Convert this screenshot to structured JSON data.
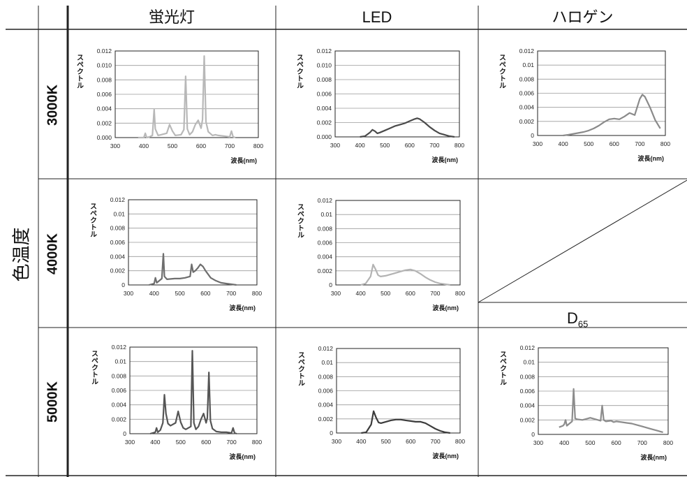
{
  "table": {
    "columns": [
      "蛍光灯",
      "LED",
      "ハロゲン"
    ],
    "rows": [
      "3000K",
      "4000K",
      "5000K"
    ],
    "row_group_label": "色温度",
    "d65_label": {
      "main": "D",
      "sub": "65"
    }
  },
  "chart_data": [
    {
      "id": "fl-3000",
      "type": "line",
      "light": "蛍光灯",
      "cct": "3000K",
      "xlabel": "波長(nm)",
      "ylabel": "スペクトル",
      "xlim": [
        300,
        800
      ],
      "ylim": [
        0,
        0.012
      ],
      "xticks": [
        "300",
        "400",
        "500",
        "600",
        "700",
        "800"
      ],
      "yticks": [
        "0.000",
        "0.002",
        "0.004",
        "0.006",
        "0.008",
        "0.010",
        "0.012"
      ],
      "color": "#b8b8b8",
      "series": [
        {
          "x": [
            380,
            400,
            405,
            410,
            420,
            430,
            436,
            440,
            450,
            460,
            480,
            490,
            500,
            510,
            530,
            540,
            546,
            552,
            560,
            570,
            580,
            590,
            600,
            605,
            611,
            617,
            625,
            640,
            650,
            660,
            680,
            700,
            706,
            712,
            720
          ],
          "y": [
            0,
            0,
            0.0006,
            0,
            0.0001,
            0.0003,
            0.0039,
            0.0012,
            0.0003,
            0.0004,
            0.0006,
            0.0018,
            0.0009,
            0.0003,
            0.0004,
            0.0011,
            0.0085,
            0.0012,
            0.0004,
            0.0008,
            0.0018,
            0.0024,
            0.0013,
            0.0025,
            0.0113,
            0.0022,
            0.0008,
            0.0003,
            0.0004,
            0.0003,
            0.0002,
            0.0001,
            0.0009,
            0.0001,
            0
          ]
        }
      ]
    },
    {
      "id": "led-3000",
      "type": "line",
      "light": "LED",
      "cct": "3000K",
      "xlabel": "波長(nm)",
      "ylabel": "スペクトル",
      "xlim": [
        300,
        800
      ],
      "ylim": [
        0,
        0.012
      ],
      "xticks": [
        "300",
        "400",
        "500",
        "600",
        "700",
        "800"
      ],
      "yticks": [
        "0.000",
        "0.002",
        "0.004",
        "0.006",
        "0.008",
        "0.010",
        "0.012"
      ],
      "color": "#4a4a4a",
      "series": [
        {
          "x": [
            400,
            420,
            440,
            450,
            460,
            470,
            480,
            500,
            520,
            540,
            560,
            580,
            600,
            620,
            630,
            640,
            660,
            680,
            700,
            720,
            740,
            760,
            780
          ],
          "y": [
            0,
            0.0001,
            0.0006,
            0.001,
            0.0008,
            0.0005,
            0.0006,
            0.0009,
            0.0012,
            0.0015,
            0.0017,
            0.0019,
            0.0022,
            0.0025,
            0.0026,
            0.0025,
            0.002,
            0.0014,
            0.0009,
            0.0005,
            0.0003,
            0.0001,
            0
          ]
        }
      ]
    },
    {
      "id": "hal-3000",
      "type": "line",
      "light": "ハロゲン",
      "cct": "3000K",
      "xlabel": "波長(nm)",
      "ylabel": "スペクトル",
      "xlim": [
        300,
        800
      ],
      "ylim": [
        0,
        0.012
      ],
      "xticks": [
        "300",
        "400",
        "500",
        "600",
        "700",
        "800"
      ],
      "yticks": [
        "0",
        "0.002",
        "0.004",
        "0.006",
        "0.008",
        "0.01",
        "0.012"
      ],
      "color": "#8a8a8a",
      "series": [
        {
          "x": [
            400,
            420,
            450,
            480,
            500,
            520,
            540,
            560,
            580,
            600,
            620,
            640,
            660,
            680,
            700,
            710,
            720,
            740,
            760,
            780
          ],
          "y": [
            0,
            0.0001,
            0.0003,
            0.0005,
            0.0007,
            0.001,
            0.0014,
            0.0019,
            0.0023,
            0.0024,
            0.0023,
            0.0027,
            0.0032,
            0.0029,
            0.0052,
            0.0058,
            0.0055,
            0.004,
            0.0022,
            0.001
          ]
        }
      ]
    },
    {
      "id": "fl-4000",
      "type": "line",
      "light": "蛍光灯",
      "cct": "4000K",
      "xlabel": "波長(nm)",
      "ylabel": "スペクトル",
      "xlim": [
        300,
        800
      ],
      "ylim": [
        0,
        0.012
      ],
      "xticks": [
        "300",
        "400",
        "500",
        "600",
        "700",
        "800"
      ],
      "yticks": [
        "0",
        "0.002",
        "0.004",
        "0.006",
        "0.008",
        "0.01",
        "0.012"
      ],
      "color": "#6e6e6e",
      "series": [
        {
          "x": [
            380,
            400,
            405,
            410,
            420,
            430,
            436,
            440,
            450,
            480,
            500,
            520,
            540,
            546,
            552,
            560,
            570,
            580,
            590,
            600,
            620,
            640,
            660,
            680,
            700,
            720
          ],
          "y": [
            0,
            0.0002,
            0.001,
            0.0003,
            0.0006,
            0.0009,
            0.0044,
            0.0012,
            0.0008,
            0.0009,
            0.0009,
            0.001,
            0.0012,
            0.0029,
            0.0018,
            0.002,
            0.0024,
            0.0029,
            0.0026,
            0.002,
            0.001,
            0.0006,
            0.0003,
            0.0002,
            0.0001,
            0
          ]
        }
      ]
    },
    {
      "id": "led-4000",
      "type": "line",
      "light": "LED",
      "cct": "4000K",
      "xlabel": "波長(nm)",
      "ylabel": "スペクトル",
      "xlim": [
        300,
        800
      ],
      "ylim": [
        0,
        0.012
      ],
      "xticks": [
        "300",
        "400",
        "500",
        "600",
        "700",
        "800"
      ],
      "yticks": [
        "0",
        "0.002",
        "0.004",
        "0.006",
        "0.008",
        "0.01",
        "0.012"
      ],
      "color": "#b3b3b3",
      "series": [
        {
          "x": [
            400,
            420,
            440,
            450,
            460,
            470,
            480,
            500,
            520,
            540,
            560,
            580,
            600,
            620,
            640,
            660,
            680,
            700,
            720,
            740,
            760
          ],
          "y": [
            0,
            0.0002,
            0.0012,
            0.0029,
            0.0022,
            0.0014,
            0.0012,
            0.0013,
            0.0015,
            0.0017,
            0.0019,
            0.0021,
            0.0022,
            0.002,
            0.0016,
            0.0011,
            0.0007,
            0.0004,
            0.0002,
            0.0001,
            0
          ]
        }
      ]
    },
    {
      "id": "fl-5000",
      "type": "line",
      "light": "蛍光灯",
      "cct": "5000K",
      "xlabel": "波長(nm)",
      "ylabel": "スペクトル",
      "xlim": [
        300,
        800
      ],
      "ylim": [
        0,
        0.012
      ],
      "xticks": [
        "300",
        "400",
        "500",
        "600",
        "700",
        "800"
      ],
      "yticks": [
        "0",
        "0.002",
        "0.004",
        "0.006",
        "0.008",
        "0.01",
        "0.012"
      ],
      "color": "#555555",
      "series": [
        {
          "x": [
            380,
            400,
            405,
            410,
            420,
            430,
            436,
            442,
            450,
            460,
            480,
            490,
            500,
            510,
            520,
            540,
            546,
            552,
            560,
            570,
            580,
            590,
            600,
            605,
            611,
            617,
            625,
            640,
            660,
            680,
            700,
            706,
            712,
            720
          ],
          "y": [
            0,
            0.0002,
            0.0008,
            0.0002,
            0.0005,
            0.0015,
            0.0054,
            0.0028,
            0.0014,
            0.0011,
            0.0015,
            0.0031,
            0.0016,
            0.0008,
            0.0006,
            0.001,
            0.0115,
            0.0015,
            0.0006,
            0.001,
            0.002,
            0.0028,
            0.0015,
            0.0022,
            0.0085,
            0.0018,
            0.0007,
            0.0003,
            0.0002,
            0.0002,
            0.0001,
            0.0008,
            0.0001,
            0
          ]
        }
      ]
    },
    {
      "id": "led-5000",
      "type": "line",
      "light": "LED",
      "cct": "5000K",
      "xlabel": "波長(nm)",
      "ylabel": "スペクトル",
      "xlim": [
        300,
        800
      ],
      "ylim": [
        0,
        0.012
      ],
      "xticks": [
        "300",
        "400",
        "500",
        "600",
        "700",
        "800"
      ],
      "yticks": [
        "0",
        "0.002",
        "0.004",
        "0.006",
        "0.008",
        "0.01",
        "0.012"
      ],
      "color": "#3c3c3c",
      "series": [
        {
          "x": [
            400,
            420,
            440,
            450,
            460,
            470,
            480,
            500,
            520,
            540,
            560,
            580,
            600,
            620,
            640,
            660,
            680,
            700,
            720,
            740,
            760
          ],
          "y": [
            0,
            0.0001,
            0.0012,
            0.0031,
            0.0022,
            0.0015,
            0.0014,
            0.0016,
            0.0018,
            0.0019,
            0.0019,
            0.0018,
            0.0017,
            0.0016,
            0.0016,
            0.0014,
            0.001,
            0.0006,
            0.0003,
            0.0001,
            0
          ]
        }
      ]
    },
    {
      "id": "d65",
      "type": "line",
      "light": "D65",
      "cct": "",
      "xlabel": "波長(nm)",
      "ylabel": "スペクトル",
      "xlim": [
        300,
        800
      ],
      "ylim": [
        0,
        0.012
      ],
      "xticks": [
        "300",
        "400",
        "500",
        "600",
        "700",
        "800"
      ],
      "yticks": [
        "0",
        "0.002",
        "0.004",
        "0.006",
        "0.008",
        "0.01",
        "0.012"
      ],
      "color": "#8c8c8c",
      "series": [
        {
          "x": [
            380,
            395,
            400,
            405,
            410,
            420,
            430,
            436,
            442,
            450,
            470,
            490,
            500,
            520,
            540,
            546,
            552,
            560,
            580,
            590,
            600,
            620,
            640,
            660,
            680,
            700,
            720,
            740,
            760,
            770,
            780
          ],
          "y": [
            0.001,
            0.0012,
            0.0014,
            0.002,
            0.0012,
            0.0015,
            0.0018,
            0.0063,
            0.0022,
            0.0021,
            0.002,
            0.0022,
            0.0023,
            0.0021,
            0.0019,
            0.004,
            0.002,
            0.0018,
            0.0019,
            0.0017,
            0.0018,
            0.0017,
            0.0016,
            0.0015,
            0.0013,
            0.0011,
            0.0009,
            0.0007,
            0.0005,
            0.0004,
            0.0003
          ]
        }
      ]
    }
  ]
}
